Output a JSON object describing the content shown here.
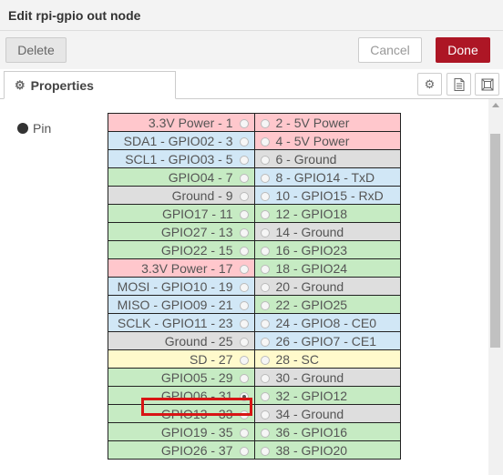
{
  "dialog": {
    "title": "Edit rpi-gpio out node"
  },
  "toolbar": {
    "delete_label": "Delete",
    "cancel_label": "Cancel",
    "done_label": "Done"
  },
  "tabs": {
    "properties_label": "Properties",
    "icons": [
      "gear-icon",
      "description-icon",
      "appearance-icon"
    ]
  },
  "form": {
    "pin_label": "Pin",
    "selected_pin": 31
  },
  "colors": {
    "power": "#ffc7cc",
    "i2c_spi_uart": "#d1e7f6",
    "ground": "#dedede",
    "gpio": "#c6ebc3",
    "sd": "#fffacc",
    "done": "#ad1625"
  },
  "pins": [
    {
      "left": "3.3V Power - 1",
      "left_type": "power",
      "right": "2 - 5V Power",
      "right_type": "power"
    },
    {
      "left": "SDA1 - GPIO02 - 3",
      "left_type": "i2c_spi_uart",
      "right": "4 - 5V Power",
      "right_type": "power"
    },
    {
      "left": "SCL1 - GPIO03 - 5",
      "left_type": "i2c_spi_uart",
      "right": "6 - Ground",
      "right_type": "ground"
    },
    {
      "left": "GPIO04 - 7",
      "left_type": "gpio",
      "right": "8 - GPIO14 - TxD",
      "right_type": "i2c_spi_uart"
    },
    {
      "left": "Ground - 9",
      "left_type": "ground",
      "right": "10 - GPIO15 - RxD",
      "right_type": "i2c_spi_uart"
    },
    {
      "left": "GPIO17 - 11",
      "left_type": "gpio",
      "right": "12 - GPIO18",
      "right_type": "gpio"
    },
    {
      "left": "GPIO27 - 13",
      "left_type": "gpio",
      "right": "14 - Ground",
      "right_type": "ground"
    },
    {
      "left": "GPIO22 - 15",
      "left_type": "gpio",
      "right": "16 - GPIO23",
      "right_type": "gpio"
    },
    {
      "left": "3.3V Power - 17",
      "left_type": "power",
      "right": "18 - GPIO24",
      "right_type": "gpio"
    },
    {
      "left": "MOSI - GPIO10 - 19",
      "left_type": "i2c_spi_uart",
      "right": "20 - Ground",
      "right_type": "ground"
    },
    {
      "left": "MISO - GPIO09 - 21",
      "left_type": "i2c_spi_uart",
      "right": "22 - GPIO25",
      "right_type": "gpio"
    },
    {
      "left": "SCLK - GPIO11 - 23",
      "left_type": "i2c_spi_uart",
      "right": "24 - GPIO8 - CE0",
      "right_type": "i2c_spi_uart"
    },
    {
      "left": "Ground - 25",
      "left_type": "ground",
      "right": "26 - GPIO7 - CE1",
      "right_type": "i2c_spi_uart"
    },
    {
      "left": "SD - 27",
      "left_type": "sd",
      "right": "28 - SC",
      "right_type": "sd"
    },
    {
      "left": "GPIO05 - 29",
      "left_type": "gpio",
      "right": "30 - Ground",
      "right_type": "ground"
    },
    {
      "left": "GPIO06 - 31",
      "left_type": "gpio",
      "right": "32 - GPIO12",
      "right_type": "gpio"
    },
    {
      "left": "GPIO13 - 33",
      "left_type": "gpio",
      "right": "34 - Ground",
      "right_type": "ground"
    },
    {
      "left": "GPIO19 - 35",
      "left_type": "gpio",
      "right": "36 - GPIO16",
      "right_type": "gpio"
    },
    {
      "left": "GPIO26 - 37",
      "left_type": "gpio",
      "right": "38 - GPIO20",
      "right_type": "gpio"
    }
  ]
}
